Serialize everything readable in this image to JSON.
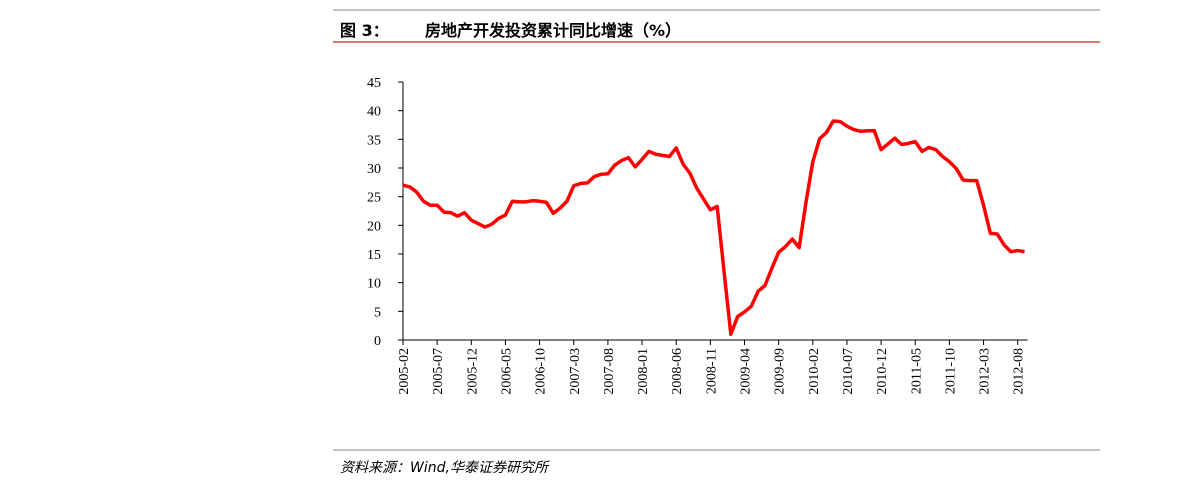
{
  "chart_data": {
    "type": "line",
    "figure_label": "图 3：",
    "title": "房地产开发投资累计同比增速（%）",
    "categories": [
      "2005-02",
      null,
      null,
      null,
      null,
      "2005-07",
      null,
      null,
      null,
      null,
      "2005-12",
      null,
      null,
      null,
      null,
      "2006-05",
      null,
      null,
      null,
      null,
      "2006-10",
      null,
      null,
      null,
      null,
      "2007-03",
      null,
      null,
      null,
      null,
      "2007-08",
      null,
      null,
      null,
      null,
      "2008-01",
      null,
      null,
      null,
      null,
      "2008-06",
      null,
      null,
      null,
      null,
      "2008-11",
      null,
      null,
      null,
      null,
      "2009-04",
      null,
      null,
      null,
      null,
      "2009-09",
      null,
      null,
      null,
      null,
      "2010-02",
      null,
      null,
      null,
      null,
      "2010-07",
      null,
      null,
      null,
      null,
      "2010-12",
      null,
      null,
      null,
      null,
      "2011-05",
      null,
      null,
      null,
      null,
      "2011-10",
      null,
      null,
      null,
      null,
      "2012-03",
      null,
      null,
      null,
      null,
      "2012-08",
      null
    ],
    "values": [
      27.0,
      26.7,
      25.8,
      24.2,
      23.5,
      23.5,
      22.3,
      22.2,
      21.6,
      22.2,
      20.9,
      20.3,
      19.7,
      20.2,
      21.2,
      21.8,
      24.2,
      24.1,
      24.1,
      24.3,
      24.2,
      24.0,
      22.1,
      23.0,
      24.2,
      26.9,
      27.3,
      27.4,
      28.5,
      28.9,
      29.0,
      30.5,
      31.3,
      31.8,
      30.2,
      31.5,
      32.9,
      32.4,
      32.2,
      32.0,
      33.5,
      30.7,
      29.1,
      26.5,
      24.6,
      22.7,
      23.3,
      12.0,
      1.0,
      4.1,
      4.9,
      5.9,
      8.5,
      9.5,
      12.5,
      15.3,
      16.3,
      17.6,
      16.1,
      24.0,
      31.1,
      35.1,
      36.2,
      38.2,
      38.1,
      37.3,
      36.7,
      36.4,
      36.5,
      36.5,
      33.2,
      34.2,
      35.2,
      34.1,
      34.3,
      34.6,
      32.9,
      33.6,
      33.2,
      32.0,
      31.1,
      29.9,
      27.9,
      27.8,
      27.8,
      23.5,
      18.6,
      18.5,
      16.6,
      15.4,
      15.6,
      15.4
    ],
    "color": "#ff0000",
    "ylim": [
      0,
      45
    ],
    "yticks": [
      0,
      5,
      10,
      15,
      20,
      25,
      30,
      35,
      40,
      45
    ]
  },
  "source": "资料来源：Wind,华泰证券研究所"
}
